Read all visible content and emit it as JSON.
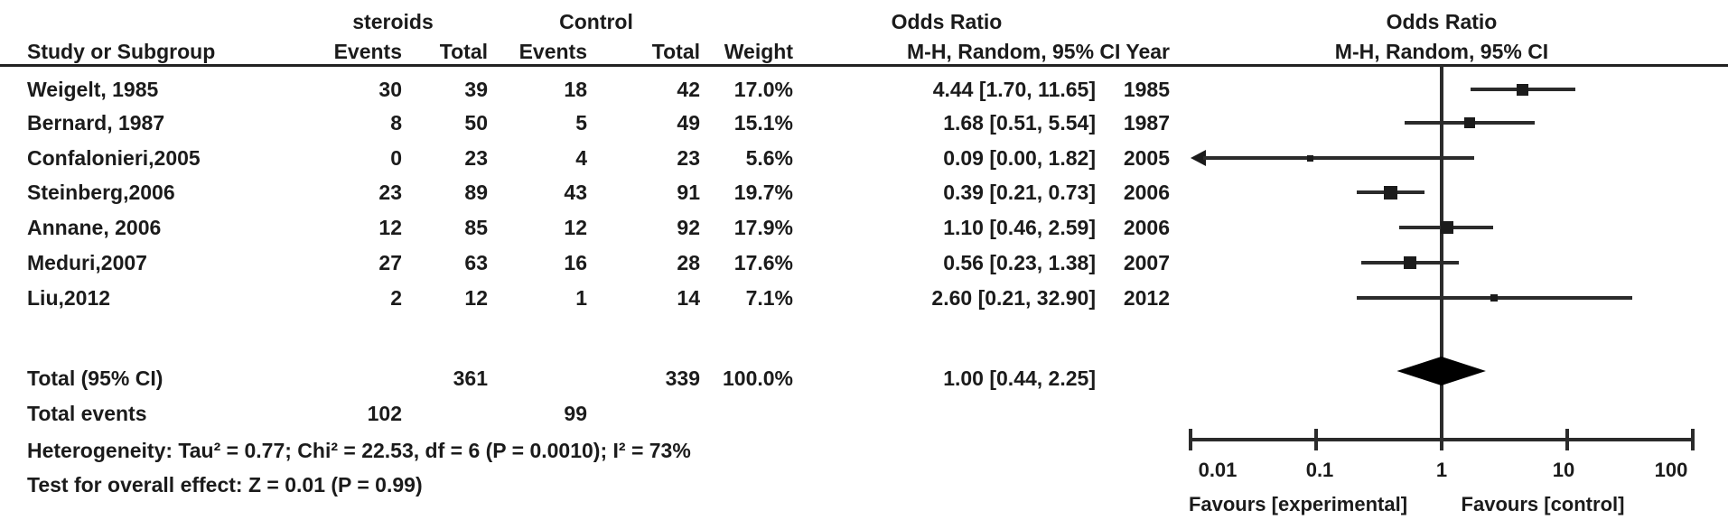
{
  "header": {
    "group1": "steroids",
    "group2": "Control",
    "odds_ratio_left": "Odds Ratio",
    "odds_ratio_right": "Odds Ratio",
    "col_study": "Study or Subgroup",
    "col_events_1": "Events",
    "col_total_1": "Total",
    "col_events_2": "Events",
    "col_total_2": "Total",
    "col_weight": "Weight",
    "col_method_year": "M-H, Random, 95% CI Year",
    "col_method_right": "M-H, Random, 95% CI"
  },
  "table": {
    "rows": [
      {
        "study": "Weigelt, 1985",
        "e1": "30",
        "t1": "39",
        "e2": "18",
        "t2": "42",
        "weight": "17.0%",
        "ci": "4.44 [1.70, 11.65]",
        "year": "1985"
      },
      {
        "study": "Bernard, 1987",
        "e1": "8",
        "t1": "50",
        "e2": "5",
        "t2": "49",
        "weight": "15.1%",
        "ci": "1.68 [0.51, 5.54]",
        "year": "1987"
      },
      {
        "study": "Confalonieri,2005",
        "e1": "0",
        "t1": "23",
        "e2": "4",
        "t2": "23",
        "weight": "5.6%",
        "ci": "0.09 [0.00, 1.82]",
        "year": "2005"
      },
      {
        "study": "Steinberg,2006",
        "e1": "23",
        "t1": "89",
        "e2": "43",
        "t2": "91",
        "weight": "19.7%",
        "ci": "0.39 [0.21, 0.73]",
        "year": "2006"
      },
      {
        "study": "Annane, 2006",
        "e1": "12",
        "t1": "85",
        "e2": "12",
        "t2": "92",
        "weight": "17.9%",
        "ci": "1.10 [0.46, 2.59]",
        "year": "2006"
      },
      {
        "study": "Meduri,2007",
        "e1": "27",
        "t1": "63",
        "e2": "16",
        "t2": "28",
        "weight": "17.6%",
        "ci": "0.56 [0.23, 1.38]",
        "year": "2007"
      },
      {
        "study": "Liu,2012",
        "e1": "2",
        "t1": "12",
        "e2": "1",
        "t2": "14",
        "weight": "7.1%",
        "ci": "2.60 [0.21, 32.90]",
        "year": "2012"
      }
    ],
    "total": {
      "label": "Total (95% CI)",
      "t1": "361",
      "t2": "339",
      "weight": "100.0%",
      "ci": "1.00 [0.44, 2.25]"
    },
    "total_events": {
      "label": "Total events",
      "e1": "102",
      "e2": "99"
    },
    "heterogeneity": "Heterogeneity: Tau² = 0.77; Chi² = 22.53, df = 6 (P = 0.0010); I² = 73%",
    "overall_effect": "Test for overall effect: Z = 0.01 (P = 0.99)"
  },
  "chart_data": {
    "type": "scatter",
    "subtype": "forest_plot",
    "title": "Odds Ratio",
    "method": "M-H, Random, 95% CI",
    "x_scale": "log10",
    "x_range": [
      0.01,
      100
    ],
    "x_ticks": [
      0.01,
      0.1,
      1,
      10,
      100
    ],
    "axis_tick_labels": [
      "0.01",
      "0.1",
      "1",
      "10",
      "100"
    ],
    "reference_line": 1,
    "favours_left": "Favours [experimental]",
    "favours_right": "Favours [control]",
    "studies": [
      {
        "name": "Weigelt, 1985",
        "or": 4.44,
        "ci_low": 1.7,
        "ci_high": 11.65,
        "weight_pct": 17.0
      },
      {
        "name": "Bernard, 1987",
        "or": 1.68,
        "ci_low": 0.51,
        "ci_high": 5.54,
        "weight_pct": 15.1
      },
      {
        "name": "Confalonieri,2005",
        "or": 0.09,
        "ci_low": 0.0,
        "ci_high": 1.82,
        "weight_pct": 5.6
      },
      {
        "name": "Steinberg,2006",
        "or": 0.39,
        "ci_low": 0.21,
        "ci_high": 0.73,
        "weight_pct": 19.7
      },
      {
        "name": "Annane, 2006",
        "or": 1.1,
        "ci_low": 0.46,
        "ci_high": 2.59,
        "weight_pct": 17.9
      },
      {
        "name": "Meduri,2007",
        "or": 0.56,
        "ci_low": 0.23,
        "ci_high": 1.38,
        "weight_pct": 17.6
      },
      {
        "name": "Liu,2012",
        "or": 2.6,
        "ci_low": 0.21,
        "ci_high": 32.9,
        "weight_pct": 7.1
      }
    ],
    "total": {
      "or": 1.0,
      "ci_low": 0.44,
      "ci_high": 2.25
    },
    "marker_color": "#1b1b1b",
    "line_color": "#2b2b2b"
  }
}
